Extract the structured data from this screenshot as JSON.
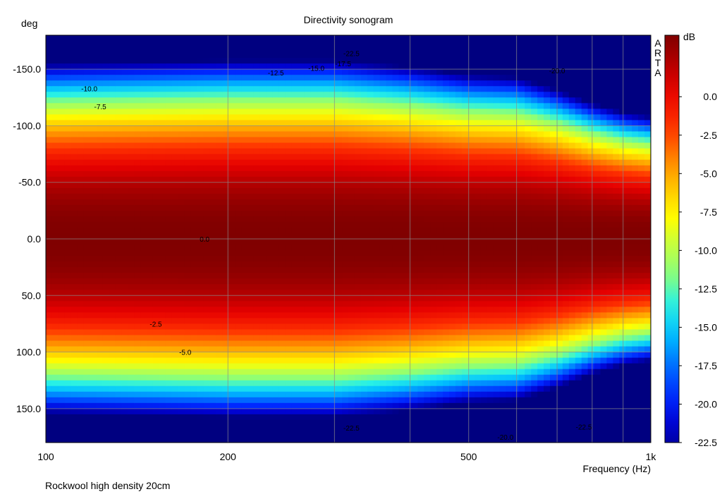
{
  "chart_data": {
    "type": "heatmap",
    "title": "Directivity sonogram",
    "ylabel": "deg",
    "xlabel": "Frequency (Hz)",
    "footer": "Rockwool high density 20cm",
    "watermark": "ARTA",
    "colorbar_unit": "dB",
    "xscale": "log",
    "xlim": [
      100,
      1000
    ],
    "ylim": [
      180,
      -180
    ],
    "x_ticks": [
      {
        "value": 100,
        "label": "100"
      },
      {
        "value": 200,
        "label": "200"
      },
      {
        "value": 500,
        "label": "500"
      },
      {
        "value": 1000,
        "label": "1k"
      }
    ],
    "x_minor_grid": [
      300,
      400,
      600,
      700,
      800,
      900
    ],
    "y_ticks": [
      {
        "value": -150,
        "label": "-150.0"
      },
      {
        "value": -100,
        "label": "-100.0"
      },
      {
        "value": -50,
        "label": "-50.0"
      },
      {
        "value": 0,
        "label": "0.0"
      },
      {
        "value": 50,
        "label": "50.0"
      },
      {
        "value": 100,
        "label": "100.0"
      },
      {
        "value": 150,
        "label": "150.0"
      }
    ],
    "colorbar_range": [
      -22.5,
      4
    ],
    "colorbar_ticks": [
      {
        "value": 0,
        "label": "0.0"
      },
      {
        "value": -2.5,
        "label": "-2.5"
      },
      {
        "value": -5,
        "label": "-5.0"
      },
      {
        "value": -7.5,
        "label": "-7.5"
      },
      {
        "value": -10,
        "label": "-10.0"
      },
      {
        "value": -12.5,
        "label": "-12.5"
      },
      {
        "value": -15,
        "label": "-15.0"
      },
      {
        "value": -17.5,
        "label": "-17.5"
      },
      {
        "value": -20,
        "label": "-20.0"
      },
      {
        "value": -22.5,
        "label": "-22.5"
      }
    ],
    "contour_labels": [
      {
        "freq": 118,
        "angle": -133,
        "label": "-10.0"
      },
      {
        "freq": 123,
        "angle": -117,
        "label": "-7.5"
      },
      {
        "freq": 183,
        "angle": 0,
        "label": "0.0"
      },
      {
        "freq": 152,
        "angle": 75,
        "label": "-2.5"
      },
      {
        "freq": 170,
        "angle": 100,
        "label": "-5.0"
      },
      {
        "freq": 240,
        "angle": -147,
        "label": "-12.5"
      },
      {
        "freq": 280,
        "angle": -151,
        "label": "-15.0"
      },
      {
        "freq": 310,
        "angle": -155,
        "label": "-17.5"
      },
      {
        "freq": 320,
        "angle": -164,
        "label": "-22.5"
      },
      {
        "freq": 700,
        "angle": -149,
        "label": "-20.0"
      },
      {
        "freq": 320,
        "angle": 167,
        "label": "-22.5"
      },
      {
        "freq": 575,
        "angle": 175,
        "label": "-20.0"
      },
      {
        "freq": 775,
        "angle": 166,
        "label": "-22.5"
      }
    ],
    "data_model": {
      "description_of_values": "level in dB relative to on-axis",
      "on_axis_level": 4,
      "floor_level": -23.5,
      "beamwidth_anchors": [
        {
          "freq": 100,
          "half_angle": 155
        },
        {
          "freq": 200,
          "half_angle": 158
        },
        {
          "freq": 300,
          "half_angle": 158
        },
        {
          "freq": 400,
          "half_angle": 152
        },
        {
          "freq": 500,
          "half_angle": 145
        },
        {
          "freq": 600,
          "half_angle": 143
        },
        {
          "freq": 700,
          "half_angle": 132
        },
        {
          "freq": 800,
          "half_angle": 120
        },
        {
          "freq": 900,
          "half_angle": 112
        },
        {
          "freq": 1000,
          "half_angle": 108
        }
      ]
    }
  }
}
